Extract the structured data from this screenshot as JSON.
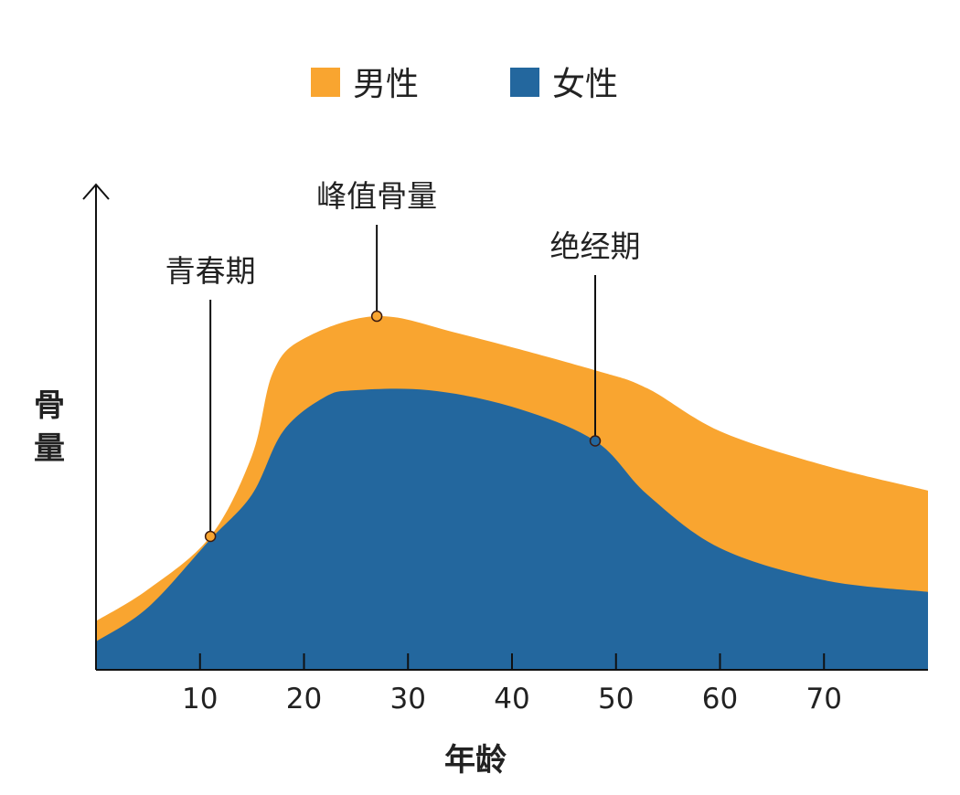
{
  "chart_data": {
    "type": "area",
    "title": "",
    "xlabel": "年龄",
    "ylabel": "骨量",
    "xlim": [
      0,
      80
    ],
    "ylim": [
      0,
      100
    ],
    "x_ticks": [
      10,
      20,
      30,
      40,
      50,
      60,
      70
    ],
    "y_ticks": [],
    "grid": false,
    "legend_position": "top-center",
    "series": [
      {
        "name": "男性",
        "color": "#F9A530",
        "points": [
          [
            0,
            10
          ],
          [
            5,
            16.5
          ],
          [
            11,
            27.4
          ],
          [
            15,
            44
          ],
          [
            17,
            61
          ],
          [
            20,
            68
          ],
          [
            27,
            72.6
          ],
          [
            35,
            69
          ],
          [
            48,
            61.5
          ],
          [
            53,
            57.8
          ],
          [
            60,
            49
          ],
          [
            70,
            42
          ],
          [
            80,
            36.8
          ]
        ]
      },
      {
        "name": "女性",
        "color": "#23679E",
        "points": [
          [
            0,
            5.8
          ],
          [
            5,
            12.8
          ],
          [
            11,
            26.8
          ],
          [
            15,
            36
          ],
          [
            18,
            49
          ],
          [
            22,
            56
          ],
          [
            25,
            57.4
          ],
          [
            32,
            57.4
          ],
          [
            40,
            54
          ],
          [
            48,
            47
          ],
          [
            53,
            36
          ],
          [
            60,
            25
          ],
          [
            70,
            18.4
          ],
          [
            80,
            16
          ]
        ]
      }
    ],
    "annotations": [
      {
        "text": "青春期",
        "x": 11,
        "y": 27.4,
        "series": "男性"
      },
      {
        "text": "峰值骨量",
        "x": 27,
        "y": 72.6,
        "series": "男性"
      },
      {
        "text": "绝经期",
        "x": 48,
        "y": 47,
        "series": "女性"
      }
    ]
  }
}
